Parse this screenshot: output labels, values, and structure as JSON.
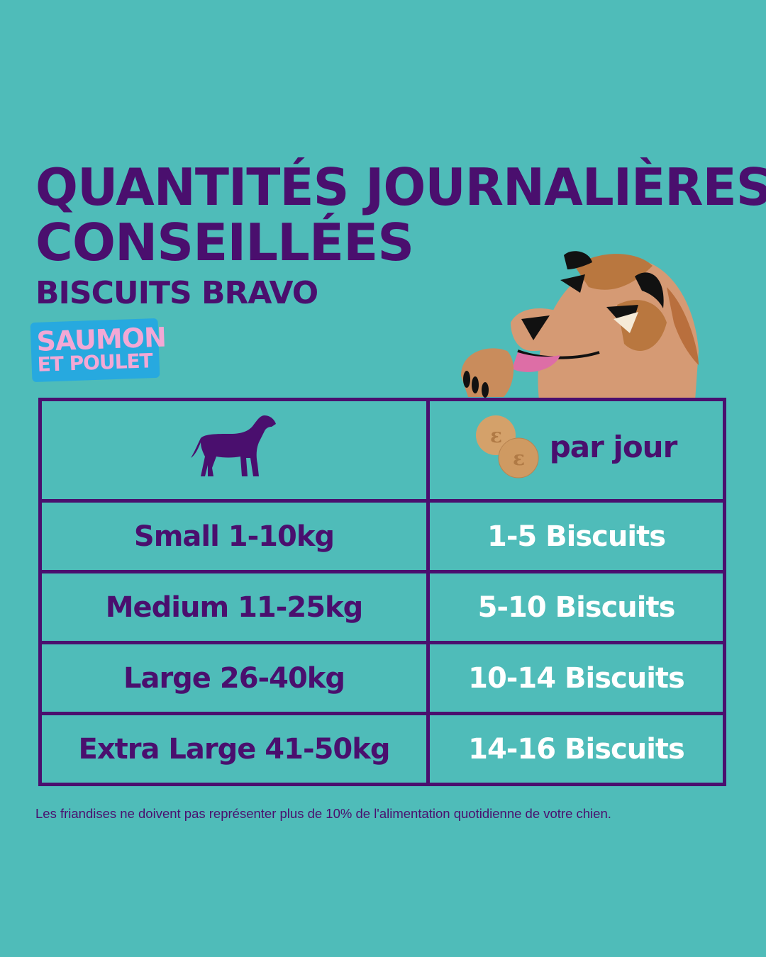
{
  "title": {
    "line1": "QUANTITÉS JOURNALIÈRES",
    "line2": "CONSEILLÉES",
    "subtitle": "BISCUITS BRAVO"
  },
  "badge": {
    "line1": "SAUMON",
    "line2": "ET POULET"
  },
  "table": {
    "header_right": "par jour",
    "rows": [
      {
        "size": "Small 1-10kg",
        "amount": "1-5 Biscuits"
      },
      {
        "size": "Medium 11-25kg",
        "amount": "5-10 Biscuits"
      },
      {
        "size": "Large 26-40kg",
        "amount": "10-14 Biscuits"
      },
      {
        "size": "Extra Large 41-50kg",
        "amount": "14-16 Biscuits"
      }
    ]
  },
  "footnote": "Les friandises ne doivent pas représenter plus de 10% de l'alimentation quotidienne de votre chien.",
  "colors": {
    "background": "#4fbcb9",
    "purple": "#4a0f6e",
    "badge": "#27a9df",
    "pink": "#f3a8d5"
  }
}
